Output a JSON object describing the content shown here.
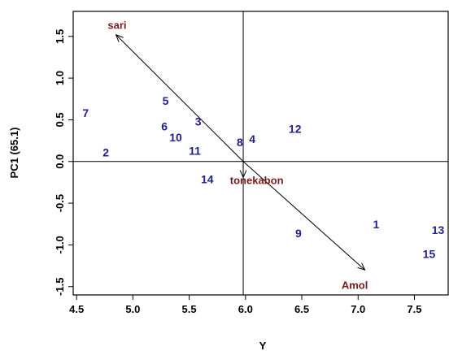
{
  "chart_data": {
    "type": "scatter",
    "title": "",
    "xlabel": "Y",
    "ylabel": "PC1 (65.1)",
    "xlim": [
      4.47,
      7.8
    ],
    "ylim": [
      -1.6,
      1.8
    ],
    "x_ticks": [
      "4.5",
      "5.0",
      "5.5",
      "6.0",
      "6.5",
      "7.0",
      "7.5"
    ],
    "x_tick_values": [
      4.5,
      5.0,
      5.5,
      6.0,
      6.5,
      7.0,
      7.5
    ],
    "y_ticks": [
      "-1.5",
      "-1.0",
      "-0.5",
      "0.0",
      "0.5",
      "1.0",
      "1.5"
    ],
    "y_tick_values": [
      -1.5,
      -1.0,
      -0.5,
      0.0,
      0.5,
      1.0,
      1.5
    ],
    "reference_lines": {
      "x": 5.98,
      "y": 0.0
    },
    "points": [
      {
        "label": "1",
        "x": 7.16,
        "y": -0.75
      },
      {
        "label": "2",
        "x": 4.76,
        "y": 0.11
      },
      {
        "label": "3",
        "x": 5.58,
        "y": 0.48
      },
      {
        "label": "4",
        "x": 6.06,
        "y": 0.27
      },
      {
        "label": "5",
        "x": 5.29,
        "y": 0.73
      },
      {
        "label": "6",
        "x": 5.28,
        "y": 0.42
      },
      {
        "label": "7",
        "x": 4.58,
        "y": 0.58
      },
      {
        "label": "8",
        "x": 5.95,
        "y": 0.23
      },
      {
        "label": "9",
        "x": 6.47,
        "y": -0.86
      },
      {
        "label": "10",
        "x": 5.38,
        "y": 0.29
      },
      {
        "label": "11",
        "x": 5.55,
        "y": 0.13
      },
      {
        "label": "12",
        "x": 6.44,
        "y": 0.39
      },
      {
        "label": "13",
        "x": 7.71,
        "y": -0.82
      },
      {
        "label": "14",
        "x": 5.66,
        "y": -0.21
      },
      {
        "label": "15",
        "x": 7.63,
        "y": -1.11
      }
    ],
    "vectors": [
      {
        "label": "sari",
        "x": 4.85,
        "y": 1.52,
        "label_x": 4.86,
        "label_y": 1.64
      },
      {
        "label": "tonekabon",
        "x": 5.98,
        "y": -0.19,
        "label_x": 6.1,
        "label_y": -0.22
      },
      {
        "label": "Amol",
        "x": 7.06,
        "y": -1.3,
        "label_x": 6.97,
        "label_y": -1.48
      }
    ],
    "grid": false,
    "legend": "none",
    "colors": {
      "points": "#1f1f8f",
      "vectors": "#7a1b1b",
      "axes": "#000000"
    }
  }
}
